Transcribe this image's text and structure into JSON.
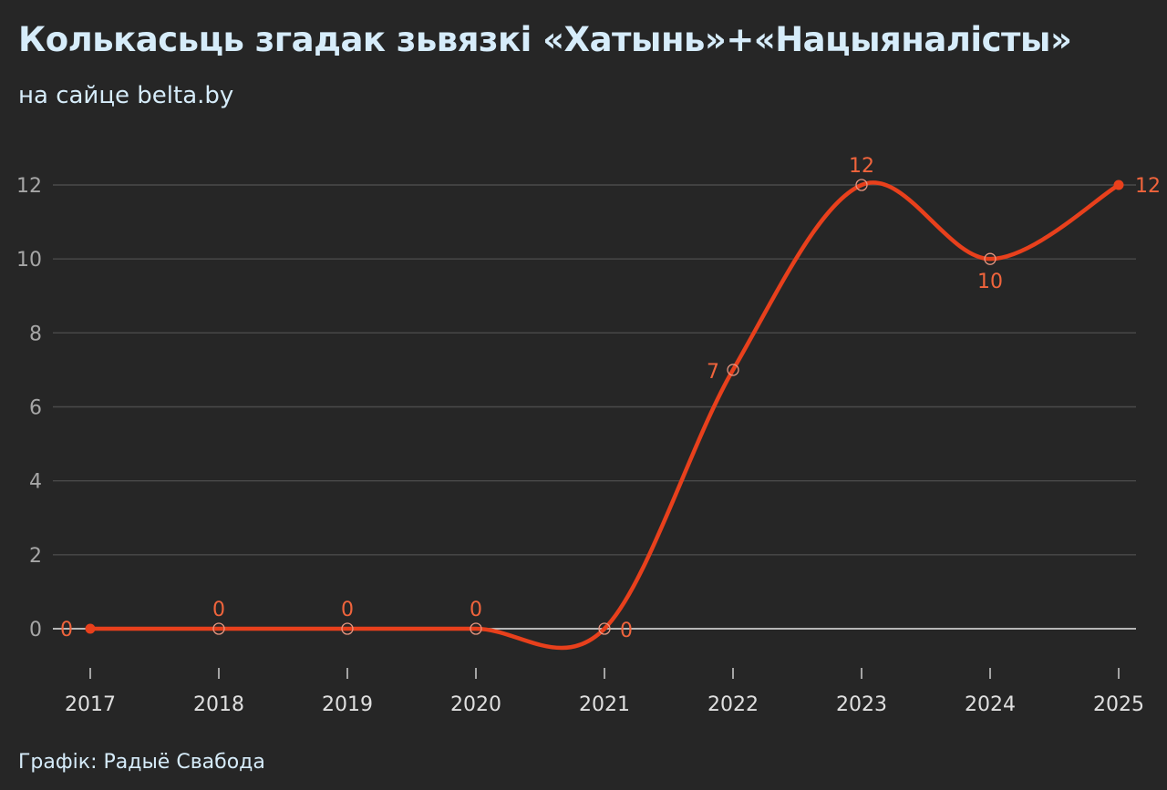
{
  "header": {
    "title": "Колькасьць згадак зьвязкі «Хатынь»+«Нацыяналісты»",
    "subtitle": "на сайце belta.by"
  },
  "footer": {
    "source": "Графік: Радыё Свабода"
  },
  "colors": {
    "background": "#262626",
    "line": "#e8401c",
    "data_label": "#f0643c",
    "grid": "#4a4a4a",
    "zero_line": "#e6e6e6",
    "title": "#d6ecfa"
  },
  "chart_data": {
    "type": "line",
    "x": [
      "2017",
      "2018",
      "2019",
      "2020",
      "2021",
      "2022",
      "2023",
      "2024",
      "2025"
    ],
    "series": [
      {
        "values": [
          0,
          0,
          0,
          0,
          0,
          7,
          12,
          10,
          12
        ]
      }
    ],
    "data_labels": [
      "0",
      "0",
      "0",
      "0",
      "0",
      "7",
      "12",
      "10",
      "12"
    ],
    "y_ticks": [
      0,
      2,
      4,
      6,
      8,
      10,
      12
    ],
    "ylim": [
      0,
      12
    ],
    "grid": true,
    "smooth": true,
    "legend": false
  }
}
